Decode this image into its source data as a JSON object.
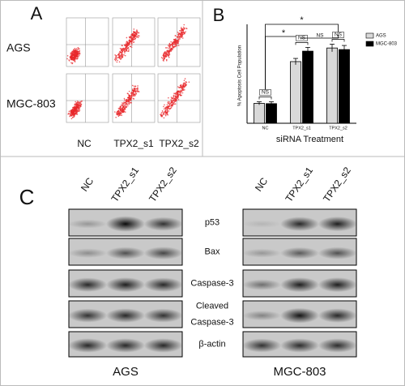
{
  "panel_a": {
    "label": "A",
    "row_labels": [
      "AGS",
      "MGC-803"
    ],
    "column_labels": [
      "NC",
      "TPX2_s1",
      "TPX2_s2"
    ]
  },
  "chart_data": {
    "type": "bar",
    "panel_label": "B",
    "y_label": "% Apoptosis Cell Population",
    "x_label": "siRNA Treatment",
    "categories": [
      "NC",
      "TPX2_s1",
      "TPX2_s2"
    ],
    "series": [
      {
        "name": "AGS",
        "color": "#d9d9d9",
        "values": [
          6.3,
          19.5,
          23.8
        ],
        "errors": [
          0.5,
          1.0,
          1.2
        ]
      },
      {
        "name": "MGC-803",
        "color": "#000000",
        "values": [
          6.2,
          22.8,
          23.3
        ],
        "errors": [
          0.6,
          1.2,
          1.3
        ]
      }
    ],
    "ylim": [
      0,
      30
    ],
    "legend": "upper right",
    "annotations": [
      "*",
      "*",
      "NS",
      "NS",
      "NS",
      "NS"
    ]
  },
  "panel_c": {
    "label": "C",
    "column_labels": [
      "NC",
      "TPX2_s1",
      "TPX2_s2"
    ],
    "protein_labels": [
      "p53",
      "Bax",
      "Caspase-3",
      [
        "Cleaved",
        "Caspase-3"
      ],
      "β-actin"
    ],
    "cell_lines": [
      "AGS",
      "MGC-803"
    ]
  }
}
